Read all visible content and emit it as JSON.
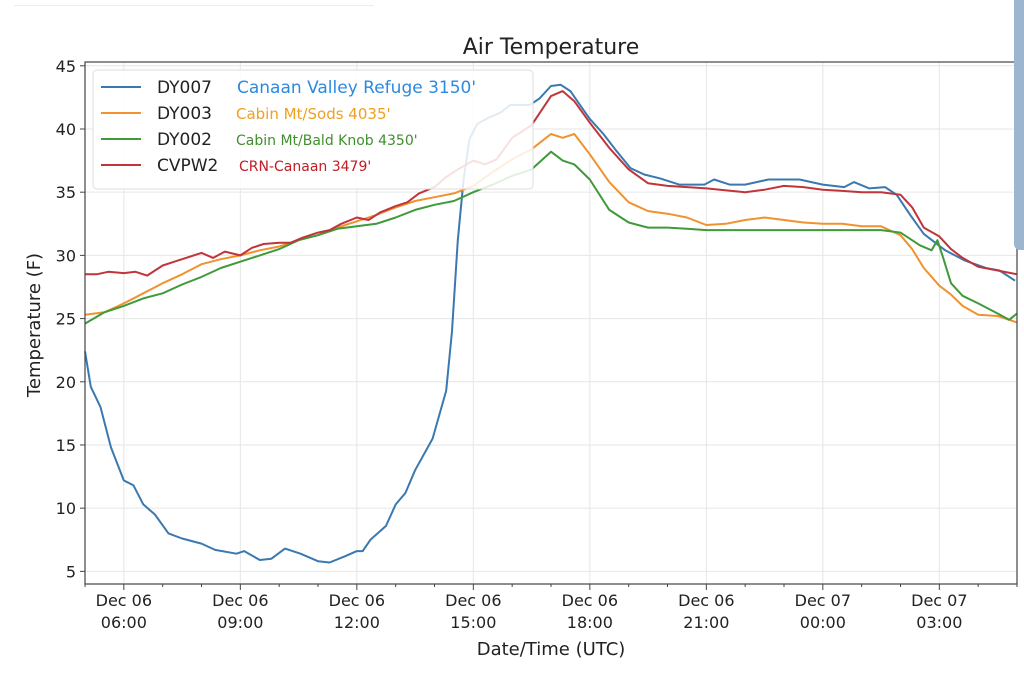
{
  "chart_data": {
    "type": "line",
    "title": "Air Temperature",
    "xlabel": "Date/Time (UTC)",
    "ylabel": "Temperature (F)",
    "x_units": "hours since Dec 06 00:00 UTC",
    "xlim": [
      5.0,
      29.0
    ],
    "ylim": [
      4,
      45.3
    ],
    "grid": true,
    "legend_placement": "top-left",
    "y_ticks": [
      5,
      10,
      15,
      20,
      25,
      30,
      35,
      40,
      45
    ],
    "x_ticks": [
      {
        "value": 6,
        "line1": "Dec 06",
        "line2": "06:00"
      },
      {
        "value": 9,
        "line1": "Dec 06",
        "line2": "09:00"
      },
      {
        "value": 12,
        "line1": "Dec 06",
        "line2": "12:00"
      },
      {
        "value": 15,
        "line1": "Dec 06",
        "line2": "15:00"
      },
      {
        "value": 18,
        "line1": "Dec 06",
        "line2": "18:00"
      },
      {
        "value": 21,
        "line1": "Dec 06",
        "line2": "21:00"
      },
      {
        "value": 24,
        "line1": "Dec 07",
        "line2": "00:00"
      },
      {
        "value": 27,
        "line1": "Dec 07",
        "line2": "03:00"
      }
    ],
    "series": [
      {
        "code": "DY007",
        "name": "Canaan Valley Refuge 3150'",
        "color": "#3a78b0",
        "label_color": "#2b8ae0",
        "x": [
          5.0,
          5.15,
          5.4,
          5.67,
          6.0,
          6.25,
          6.5,
          6.8,
          7.15,
          7.5,
          8.0,
          8.35,
          8.9,
          9.1,
          9.5,
          9.8,
          10.15,
          10.55,
          11.0,
          11.3,
          11.7,
          12.0,
          12.15,
          12.35,
          12.75,
          13.0,
          13.25,
          13.5,
          13.95,
          14.3,
          14.45,
          14.6,
          14.75,
          14.9,
          15.1,
          15.4,
          15.7,
          15.95,
          16.45,
          16.7,
          17.0,
          17.25,
          17.5,
          17.7,
          18.0,
          18.35,
          18.65,
          19.05,
          19.4,
          19.8,
          20.3,
          20.95,
          21.2,
          21.6,
          22.0,
          22.6,
          23.4,
          24.0,
          24.55,
          24.8,
          25.2,
          25.6,
          25.9,
          26.25,
          26.6,
          27.15,
          27.65,
          28.2,
          28.55,
          28.95
        ],
        "values": [
          22.4,
          19.6,
          18.0,
          14.8,
          12.2,
          11.8,
          10.3,
          9.5,
          8.0,
          7.6,
          7.2,
          6.7,
          6.4,
          6.6,
          5.9,
          6.0,
          6.8,
          6.4,
          5.8,
          5.7,
          6.2,
          6.6,
          6.6,
          7.5,
          8.6,
          10.3,
          11.2,
          13.0,
          15.5,
          19.3,
          24.0,
          31.2,
          36.0,
          39.2,
          40.4,
          40.9,
          41.3,
          41.9,
          41.9,
          42.4,
          43.4,
          43.5,
          43.0,
          42.1,
          40.8,
          39.6,
          38.4,
          36.9,
          36.4,
          36.1,
          35.6,
          35.6,
          36.0,
          35.6,
          35.6,
          36.0,
          36.0,
          35.6,
          35.4,
          35.8,
          35.3,
          35.4,
          34.8,
          33.2,
          31.7,
          30.4,
          29.6,
          29.0,
          28.8,
          28.0
        ]
      },
      {
        "code": "DY003",
        "name": "Cabin Mt/Sods 4035'",
        "color": "#f0922e",
        "label_color": "#f0a020",
        "x": [
          5.0,
          5.5,
          6.0,
          6.5,
          7.0,
          7.5,
          8.0,
          8.5,
          9.0,
          9.5,
          10.0,
          10.5,
          11.0,
          11.5,
          12.0,
          12.5,
          13.0,
          13.5,
          14.0,
          14.5,
          15.0,
          15.5,
          16.0,
          16.5,
          17.0,
          17.3,
          17.6,
          18.0,
          18.5,
          19.0,
          19.5,
          20.0,
          20.5,
          21.0,
          21.5,
          22.0,
          22.5,
          23.0,
          23.5,
          24.0,
          24.5,
          25.0,
          25.5,
          26.0,
          26.3,
          26.6,
          27.0,
          27.3,
          27.6,
          28.0,
          28.5,
          29.0
        ],
        "values": [
          25.3,
          25.5,
          26.2,
          27.0,
          27.8,
          28.5,
          29.3,
          29.7,
          30.0,
          30.4,
          30.7,
          31.2,
          31.6,
          32.2,
          32.7,
          33.2,
          33.8,
          34.3,
          34.6,
          34.9,
          35.5,
          36.6,
          37.6,
          38.4,
          39.6,
          39.3,
          39.6,
          38.0,
          35.8,
          34.2,
          33.5,
          33.3,
          33.0,
          32.4,
          32.5,
          32.8,
          33.0,
          32.8,
          32.6,
          32.5,
          32.5,
          32.3,
          32.3,
          31.6,
          30.5,
          29.0,
          27.6,
          26.9,
          26.0,
          25.3,
          25.2,
          24.7
        ]
      },
      {
        "code": "DY002",
        "name": "Cabin Mt/Bald Knob 4350'",
        "color": "#3f9a3a",
        "label_color": "#3f8f2e",
        "x": [
          5.0,
          5.5,
          6.0,
          6.5,
          7.0,
          7.5,
          8.0,
          8.5,
          9.0,
          9.5,
          10.0,
          10.5,
          11.0,
          11.5,
          12.0,
          12.5,
          13.0,
          13.5,
          14.0,
          14.5,
          15.0,
          15.5,
          16.0,
          16.5,
          17.0,
          17.3,
          17.6,
          18.0,
          18.5,
          19.0,
          19.5,
          20.0,
          20.5,
          21.0,
          22.0,
          23.0,
          24.0,
          25.0,
          25.5,
          26.0,
          26.5,
          26.8,
          26.95,
          27.1,
          27.3,
          27.6,
          28.0,
          28.5,
          28.8,
          29.0
        ],
        "values": [
          24.6,
          25.5,
          26.0,
          26.6,
          27.0,
          27.7,
          28.3,
          29.0,
          29.5,
          30.0,
          30.5,
          31.2,
          31.6,
          32.1,
          32.3,
          32.5,
          33.0,
          33.6,
          34.0,
          34.3,
          35.0,
          35.6,
          36.3,
          36.8,
          38.2,
          37.5,
          37.2,
          36.0,
          33.6,
          32.6,
          32.2,
          32.2,
          32.1,
          32.0,
          32.0,
          32.0,
          32.0,
          32.0,
          32.0,
          31.8,
          30.8,
          30.4,
          31.2,
          29.8,
          27.8,
          26.8,
          26.2,
          25.4,
          24.9,
          25.4
        ]
      },
      {
        "code": "CVPW2",
        "name": "CRN-Canaan 3479'",
        "color": "#c0353a",
        "label_color": "#c01e24",
        "x": [
          5.0,
          5.3,
          5.6,
          6.0,
          6.3,
          6.6,
          7.0,
          7.3,
          7.6,
          8.0,
          8.3,
          8.6,
          9.0,
          9.3,
          9.6,
          10.0,
          10.3,
          10.6,
          11.0,
          11.3,
          11.6,
          12.0,
          12.3,
          12.6,
          13.0,
          13.3,
          13.6,
          14.0,
          14.3,
          14.6,
          15.0,
          15.3,
          15.6,
          16.0,
          16.5,
          17.0,
          17.3,
          17.6,
          18.0,
          18.5,
          19.0,
          19.5,
          20.0,
          21.0,
          22.0,
          22.5,
          23.0,
          23.5,
          24.0,
          24.5,
          25.0,
          25.5,
          26.0,
          26.3,
          26.6,
          27.0,
          27.3,
          27.6,
          28.0,
          28.5,
          29.0
        ],
        "values": [
          28.5,
          28.5,
          28.7,
          28.6,
          28.7,
          28.4,
          29.2,
          29.5,
          29.8,
          30.2,
          29.8,
          30.3,
          30.0,
          30.6,
          30.9,
          31.0,
          31.0,
          31.4,
          31.8,
          32.0,
          32.5,
          33.0,
          32.8,
          33.4,
          33.9,
          34.2,
          34.9,
          35.4,
          36.2,
          36.8,
          37.5,
          37.2,
          37.6,
          39.3,
          40.3,
          42.6,
          43.0,
          42.2,
          40.5,
          38.5,
          36.8,
          35.7,
          35.5,
          35.3,
          35.0,
          35.2,
          35.5,
          35.4,
          35.2,
          35.1,
          35.0,
          35.0,
          34.8,
          33.8,
          32.2,
          31.5,
          30.5,
          29.8,
          29.1,
          28.8,
          28.5
        ]
      }
    ]
  }
}
